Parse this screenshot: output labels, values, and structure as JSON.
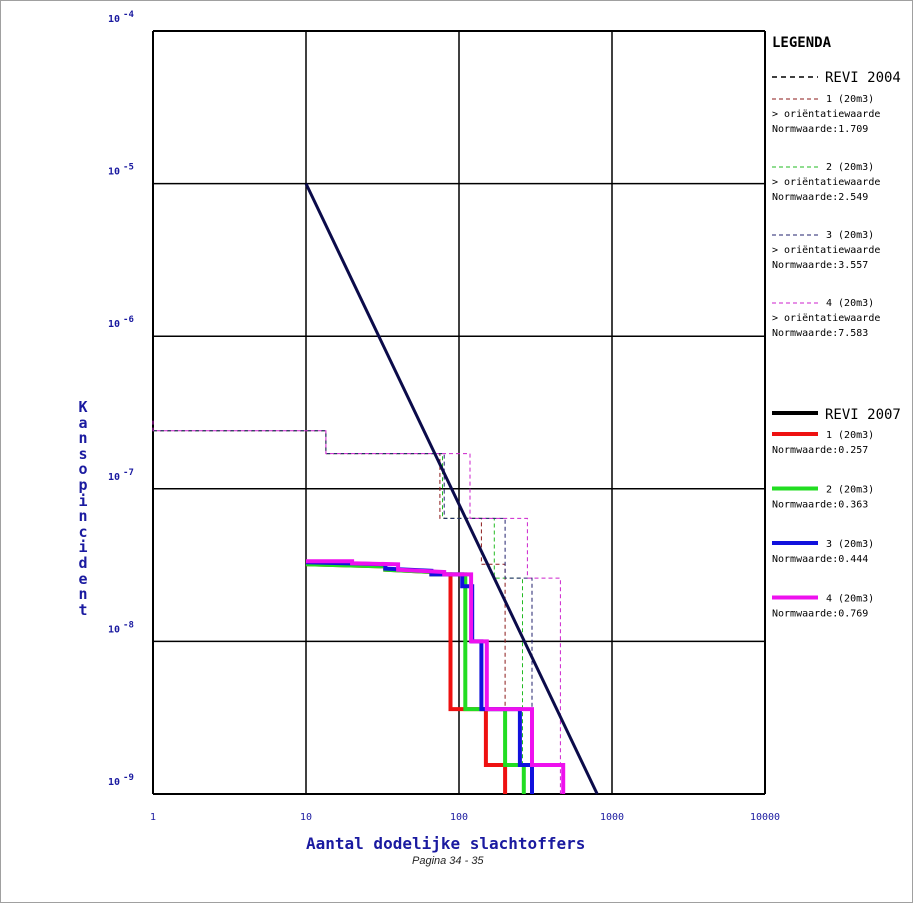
{
  "chart_data": {
    "type": "line",
    "xscale": "log",
    "yscale": "log",
    "xlim": [
      1,
      10000
    ],
    "ylim": [
      1e-09,
      0.0001
    ],
    "grid": true,
    "xlabel": "Aantal dodelijke slachtoffers",
    "ylabel": "Kans op incident",
    "x_ticks": [
      "1",
      "10",
      "100",
      "1000",
      "10000"
    ],
    "y_ticks": [
      {
        "base": "10",
        "exp": "-4"
      },
      {
        "base": "10",
        "exp": "-5"
      },
      {
        "base": "10",
        "exp": "-6"
      },
      {
        "base": "10",
        "exp": "-7"
      },
      {
        "base": "10",
        "exp": "-8"
      },
      {
        "base": "10",
        "exp": "-9"
      }
    ],
    "legend_position": "right",
    "legend": {
      "title": "LEGENDA",
      "group_2004_label": "REVI 2004",
      "group_2007_label": "REVI 2007",
      "entries_2004": [
        {
          "label": "1 (20m3)",
          "note": "> oriëntatiewaarde",
          "norm": "Normwaarde:1.709",
          "color": "#8b1a1a"
        },
        {
          "label": "2 (20m3)",
          "note": "> oriëntatiewaarde",
          "norm": "Normwaarde:2.549",
          "color": "#22bb22"
        },
        {
          "label": "3 (20m3)",
          "note": "> oriëntatiewaarde",
          "norm": "Normwaarde:3.557",
          "color": "#22226e"
        },
        {
          "label": "4 (20m3)",
          "note": "> oriëntatiewaarde",
          "norm": "Normwaarde:7.583",
          "color": "#cc22cc"
        }
      ],
      "entries_2007": [
        {
          "label": "1 (20m3)",
          "norm": "Normwaarde:0.257",
          "color": "#ee1111"
        },
        {
          "label": "2 (20m3)",
          "norm": "Normwaarde:0.363",
          "color": "#22dd22"
        },
        {
          "label": "3 (20m3)",
          "norm": "Normwaarde:0.444",
          "color": "#1111dd"
        },
        {
          "label": "4 (20m3)",
          "norm": "Normwaarde:0.769",
          "color": "#ee11ee"
        }
      ]
    },
    "norm_line": {
      "color": "#0b0b4a",
      "points": [
        [
          10,
          1e-05
        ],
        [
          800,
          1e-09
        ]
      ]
    },
    "series_2004": [
      {
        "name": "1 (20m3)",
        "color": "#8b1a1a",
        "points": [
          [
            1,
            2.4e-07
          ],
          [
            13.5,
            2.4e-07
          ],
          [
            13.5,
            1.7e-07
          ],
          [
            75,
            1.7e-07
          ],
          [
            75,
            6.4e-08
          ],
          [
            140,
            6.4e-08
          ],
          [
            140,
            3.2e-08
          ],
          [
            200,
            3.2e-08
          ],
          [
            200,
            1e-09
          ]
        ]
      },
      {
        "name": "2 (20m3)",
        "color": "#22bb22",
        "points": [
          [
            1,
            2.4e-07
          ],
          [
            13.5,
            2.4e-07
          ],
          [
            13.5,
            1.7e-07
          ],
          [
            78,
            1.7e-07
          ],
          [
            78,
            6.4e-08
          ],
          [
            170,
            6.4e-08
          ],
          [
            170,
            2.6e-08
          ],
          [
            260,
            2.6e-08
          ],
          [
            260,
            1e-09
          ]
        ]
      },
      {
        "name": "3 (20m3)",
        "color": "#22226e",
        "points": [
          [
            1,
            2.4e-07
          ],
          [
            13.5,
            2.4e-07
          ],
          [
            13.5,
            1.7e-07
          ],
          [
            80,
            1.7e-07
          ],
          [
            80,
            6.4e-08
          ],
          [
            200,
            6.4e-08
          ],
          [
            200,
            2.6e-08
          ],
          [
            300,
            2.6e-08
          ],
          [
            300,
            1e-09
          ]
        ]
      },
      {
        "name": "4 (20m3)",
        "color": "#cc22cc",
        "points": [
          [
            1,
            2.8e-07
          ],
          [
            1,
            2.4e-07
          ],
          [
            13.5,
            2.4e-07
          ],
          [
            13.5,
            1.7e-07
          ],
          [
            118,
            1.7e-07
          ],
          [
            118,
            6.4e-08
          ],
          [
            280,
            6.4e-08
          ],
          [
            280,
            2.6e-08
          ],
          [
            460,
            2.6e-08
          ],
          [
            460,
            1e-09
          ]
        ]
      }
    ],
    "series_2007": [
      {
        "name": "1 (20m3)",
        "color": "#ee1111",
        "points": [
          [
            10,
            3.2e-08
          ],
          [
            33,
            3.1e-08
          ],
          [
            33,
            2.95e-08
          ],
          [
            66,
            2.85e-08
          ],
          [
            66,
            2.75e-08
          ],
          [
            88,
            2.75e-08
          ],
          [
            88,
            3.6e-09
          ],
          [
            150,
            3.6e-09
          ],
          [
            150,
            1.55e-09
          ],
          [
            200,
            1.55e-09
          ],
          [
            200,
            1e-09
          ]
        ]
      },
      {
        "name": "2 (20m3)",
        "color": "#22dd22",
        "points": [
          [
            10,
            3.2e-08
          ],
          [
            33,
            3.1e-08
          ],
          [
            33,
            2.95e-08
          ],
          [
            66,
            2.85e-08
          ],
          [
            66,
            2.75e-08
          ],
          [
            110,
            2.75e-08
          ],
          [
            110,
            3.6e-09
          ],
          [
            200,
            3.6e-09
          ],
          [
            200,
            1.55e-09
          ],
          [
            265,
            1.55e-09
          ],
          [
            265,
            1e-09
          ]
        ]
      },
      {
        "name": "3 (20m3)",
        "color": "#1111dd",
        "points": [
          [
            10,
            3.3e-08
          ],
          [
            33,
            3.2e-08
          ],
          [
            33,
            3e-08
          ],
          [
            66,
            2.9e-08
          ],
          [
            66,
            2.75e-08
          ],
          [
            105,
            2.75e-08
          ],
          [
            105,
            2.3e-08
          ],
          [
            122,
            2.3e-08
          ],
          [
            122,
            1e-08
          ],
          [
            140,
            1e-08
          ],
          [
            140,
            3.6e-09
          ],
          [
            250,
            3.6e-09
          ],
          [
            250,
            1.55e-09
          ],
          [
            300,
            1.55e-09
          ],
          [
            300,
            1e-09
          ]
        ]
      },
      {
        "name": "4 (20m3)",
        "color": "#ee11ee",
        "points": [
          [
            10,
            3.35e-08
          ],
          [
            20,
            3.35e-08
          ],
          [
            20,
            3.25e-08
          ],
          [
            40,
            3.2e-08
          ],
          [
            40,
            2.95e-08
          ],
          [
            80,
            2.85e-08
          ],
          [
            80,
            2.75e-08
          ],
          [
            120,
            2.75e-08
          ],
          [
            120,
            1e-08
          ],
          [
            152,
            1e-08
          ],
          [
            152,
            3.6e-09
          ],
          [
            300,
            3.6e-09
          ],
          [
            300,
            1.55e-09
          ],
          [
            480,
            1.55e-09
          ],
          [
            480,
            1e-09
          ]
        ]
      }
    ]
  },
  "footer": {
    "page": "Pagina 34 - 35"
  }
}
